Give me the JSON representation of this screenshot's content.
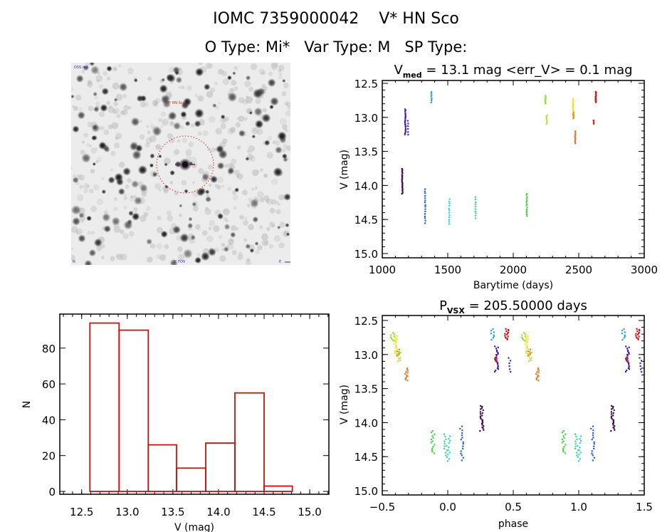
{
  "header": {
    "line1": "IOMC 7359000042    V* HN Sco",
    "line2": "O Type: Mi*   Var Type: M   SP Type:"
  },
  "finder_chart": {
    "label_top_left": "DSS red",
    "label_target": "V* HN Sco",
    "label_bottom_left": "N",
    "label_bottom_center": "5' FOV",
    "label_bottom_right": "E",
    "circle_color": "#cc2222",
    "crosshair_color": "#7a1a7a"
  },
  "chart_data": [
    {
      "id": "light_curve",
      "type": "scatter",
      "title_main": "V",
      "title_sub": "med",
      "title_rest": " = 13.1 mag <err_V> = 0.1 mag",
      "xlabel": "Barytime (days)",
      "ylabel": "V (mag)",
      "xlim": [
        1000,
        3000
      ],
      "ylim": [
        15.0,
        12.5
      ],
      "xticks": [
        "1000",
        "1500",
        "2000",
        "2500",
        "3000"
      ],
      "yticks": [
        "12.5",
        "13.0",
        "13.5",
        "14.0",
        "14.5",
        "15.0"
      ],
      "clusters": [
        {
          "t": 1152,
          "vmin": 13.75,
          "vmax": 14.12,
          "color": "#3a0a4a",
          "n": 22
        },
        {
          "t": 1175,
          "vmin": 12.88,
          "vmax": 13.25,
          "color": "#4a1ea8",
          "n": 22
        },
        {
          "t": 1196,
          "vmin": 13.05,
          "vmax": 13.25,
          "color": "#2a3aa8",
          "n": 6
        },
        {
          "t": 1326,
          "vmin": 14.05,
          "vmax": 14.55,
          "color": "#2a62c4",
          "n": 16
        },
        {
          "t": 1375,
          "vmin": 12.62,
          "vmax": 12.78,
          "color": "#30a0d0",
          "n": 8
        },
        {
          "t": 1511,
          "vmin": 14.2,
          "vmax": 14.57,
          "color": "#34d0d8",
          "n": 12
        },
        {
          "t": 1712,
          "vmin": 14.17,
          "vmax": 14.48,
          "color": "#3cd488",
          "n": 10
        },
        {
          "t": 2103,
          "vmin": 14.12,
          "vmax": 14.45,
          "color": "#44d444",
          "n": 14
        },
        {
          "t": 2245,
          "vmin": 12.68,
          "vmax": 12.8,
          "color": "#8ee040",
          "n": 8
        },
        {
          "t": 2255,
          "vmin": 12.97,
          "vmax": 13.1,
          "color": "#b4e040",
          "n": 8
        },
        {
          "t": 2456,
          "vmin": 12.73,
          "vmax": 12.98,
          "color": "#f0e020",
          "n": 14
        },
        {
          "t": 2460,
          "vmin": 12.93,
          "vmax": 13.02,
          "color": "#e09420",
          "n": 6
        },
        {
          "t": 2473,
          "vmin": 13.2,
          "vmax": 13.38,
          "color": "#e07c2c",
          "n": 12
        },
        {
          "t": 2614,
          "vmin": 13.04,
          "vmax": 13.1,
          "color": "#d02a20",
          "n": 4
        },
        {
          "t": 2630,
          "vmin": 12.62,
          "vmax": 12.78,
          "color": "#c81c1c",
          "n": 14
        }
      ]
    },
    {
      "id": "histogram",
      "type": "bar",
      "title": "",
      "xlabel": "V (mag)",
      "ylabel": "N",
      "xlim": [
        12.26,
        15.21
      ],
      "ylim": [
        0,
        99
      ],
      "xticks": [
        "12.5",
        "13.0",
        "13.5",
        "14.0",
        "14.5",
        "15.0"
      ],
      "yticks": [
        "0",
        "20",
        "40",
        "60",
        "80"
      ],
      "bin_edges": [
        12.59,
        12.91,
        13.23,
        13.54,
        13.86,
        14.18,
        14.5,
        14.81
      ],
      "values": [
        94,
        90,
        26,
        13,
        27,
        55,
        3
      ],
      "color": "#cc1111"
    },
    {
      "id": "phase_curve",
      "type": "scatter",
      "title_main": "P",
      "title_sub": "VSX",
      "title_rest": " = 205.50000 days",
      "period_days": 205.5,
      "epoch_days": 1920.9,
      "xlabel": "phase",
      "ylabel": "V (mag)",
      "xlim": [
        -0.5,
        1.5
      ],
      "ylim": [
        15.0,
        12.5
      ],
      "xticks": [
        "-0.5",
        "0.0",
        "0.5",
        "1.0",
        "1.5"
      ],
      "yticks": [
        "12.5",
        "13.0",
        "13.5",
        "14.0",
        "14.5",
        "15.0"
      ]
    }
  ]
}
